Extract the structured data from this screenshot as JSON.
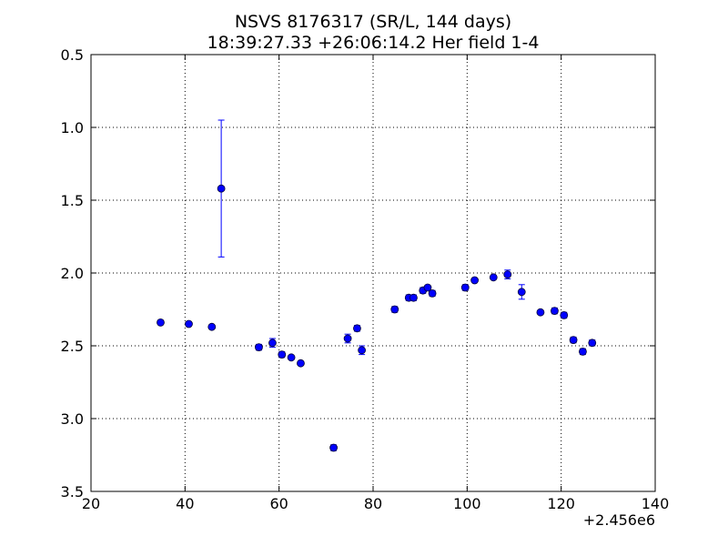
{
  "chart_data": {
    "type": "scatter",
    "title": "NSVS 8176317 (SR/L, 144 days)",
    "subtitle": "18:39:27.33 +26:06:14.2 Her field 1-4",
    "xlabel": "",
    "ylabel": "",
    "x_offset_label": "+2.456e6",
    "xlim": [
      20,
      140
    ],
    "ylim": [
      3.5,
      0.5
    ],
    "y_inverted": true,
    "grid": true,
    "grid_style": "dotted",
    "marker_color": "#0000ff",
    "x_ticks": [
      "20",
      "40",
      "60",
      "80",
      "100",
      "120",
      "140"
    ],
    "y_ticks": [
      "0.5",
      "1.0",
      "1.5",
      "2.0",
      "2.5",
      "3.0",
      "3.5"
    ],
    "series": [
      {
        "points": [
          {
            "x": 34.8,
            "y": 2.34,
            "err": 0.01
          },
          {
            "x": 40.8,
            "y": 2.35,
            "err": 0.01
          },
          {
            "x": 45.7,
            "y": 2.37,
            "err": 0.01
          },
          {
            "x": 47.7,
            "y": 1.42,
            "err": 0.47
          },
          {
            "x": 55.7,
            "y": 2.51,
            "err": 0.02
          },
          {
            "x": 58.6,
            "y": 2.48,
            "err": 0.03
          },
          {
            "x": 60.6,
            "y": 2.56,
            "err": 0.02
          },
          {
            "x": 62.6,
            "y": 2.58,
            "err": 0.01
          },
          {
            "x": 64.6,
            "y": 2.62,
            "err": 0.01
          },
          {
            "x": 71.6,
            "y": 3.2,
            "err": 0.02
          },
          {
            "x": 74.6,
            "y": 2.45,
            "err": 0.03
          },
          {
            "x": 76.6,
            "y": 2.38,
            "err": 0.02
          },
          {
            "x": 77.6,
            "y": 2.53,
            "err": 0.03
          },
          {
            "x": 84.6,
            "y": 2.25,
            "err": 0.02
          },
          {
            "x": 87.6,
            "y": 2.17,
            "err": 0.02
          },
          {
            "x": 88.6,
            "y": 2.17,
            "err": 0.02
          },
          {
            "x": 90.6,
            "y": 2.12,
            "err": 0.02
          },
          {
            "x": 91.6,
            "y": 2.1,
            "err": 0.01
          },
          {
            "x": 92.6,
            "y": 2.14,
            "err": 0.02
          },
          {
            "x": 99.6,
            "y": 2.1,
            "err": 0.02
          },
          {
            "x": 101.6,
            "y": 2.05,
            "err": 0.01
          },
          {
            "x": 105.6,
            "y": 2.03,
            "err": 0.01
          },
          {
            "x": 108.6,
            "y": 2.01,
            "err": 0.03
          },
          {
            "x": 111.6,
            "y": 2.13,
            "err": 0.05
          },
          {
            "x": 115.6,
            "y": 2.27,
            "err": 0.01
          },
          {
            "x": 118.6,
            "y": 2.26,
            "err": 0.02
          },
          {
            "x": 120.6,
            "y": 2.29,
            "err": 0.02
          },
          {
            "x": 122.6,
            "y": 2.46,
            "err": 0.02
          },
          {
            "x": 124.6,
            "y": 2.54,
            "err": 0.02
          },
          {
            "x": 126.6,
            "y": 2.48,
            "err": 0.02
          }
        ]
      }
    ]
  }
}
